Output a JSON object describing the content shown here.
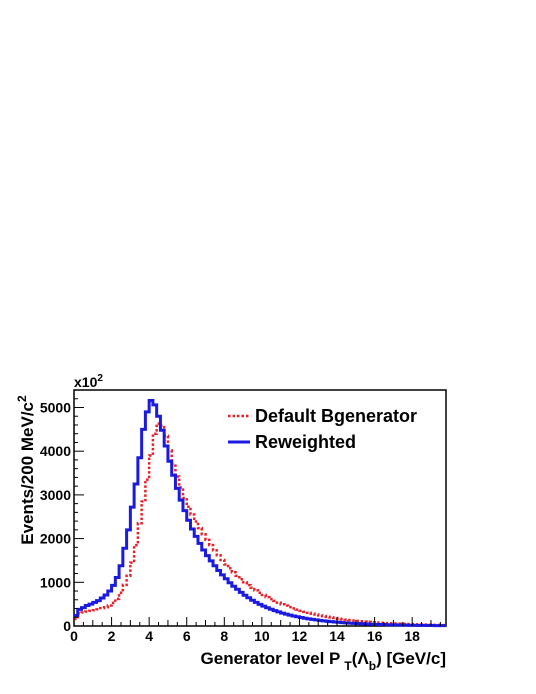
{
  "chart_data": {
    "type": "histogram",
    "title": "",
    "xlabel": {
      "main": "Generator level P",
      "sub": "T",
      "paren_open": "(",
      "symbol": "Λ",
      "symbol_sub": "b",
      "paren_close": ")",
      "units": " [GeV/c]"
    },
    "ylabel": {
      "main": "Events/200 MeV/c",
      "sup": "2"
    },
    "y_multiplier": {
      "base": "x10",
      "exp": "2"
    },
    "xlim": [
      0,
      19.8
    ],
    "ylim": [
      0,
      5400
    ],
    "bin_width": 0.2,
    "grid": false,
    "x_ticks": [
      0,
      2,
      4,
      6,
      8,
      10,
      12,
      14,
      16,
      18
    ],
    "x_tick_labels": [
      "0",
      "2",
      "4",
      "6",
      "8",
      "10",
      "12",
      "14",
      "16",
      "18"
    ],
    "y_ticks": [
      0,
      1000,
      2000,
      3000,
      4000,
      5000
    ],
    "y_tick_labels": [
      "0",
      "1000",
      "2000",
      "3000",
      "4000",
      "5000"
    ],
    "legend": {
      "position": "top-right"
    },
    "series": [
      {
        "name": "Default Bgenerator",
        "color": "#e8202a",
        "style": "dotted",
        "values": [
          160,
          290,
          310,
          330,
          345,
          360,
          380,
          410,
          430,
          470,
          530,
          620,
          760,
          940,
          1150,
          1450,
          1850,
          2350,
          2850,
          3350,
          3900,
          4400,
          4630,
          4580,
          4350,
          4020,
          3700,
          3420,
          3170,
          2930,
          2730,
          2550,
          2390,
          2240,
          2100,
          1970,
          1850,
          1730,
          1620,
          1510,
          1410,
          1320,
          1230,
          1150,
          1070,
          1000,
          935,
          875,
          815,
          760,
          710,
          660,
          615,
          575,
          535,
          498,
          465,
          433,
          403,
          375,
          350,
          325,
          303,
          282,
          262,
          244,
          227,
          211,
          196,
          182,
          169,
          157,
          146,
          136,
          126,
          117,
          109,
          101,
          94,
          87,
          81,
          75,
          70,
          65,
          60,
          56,
          52,
          48,
          45,
          42,
          39,
          36,
          34,
          31,
          29,
          27,
          25,
          23,
          21
        ]
      },
      {
        "name": "Reweighted",
        "color": "#1a1ae0",
        "style": "solid",
        "values": [
          240,
          380,
          420,
          470,
          500,
          540,
          580,
          640,
          710,
          800,
          930,
          1110,
          1380,
          1780,
          2200,
          2720,
          3250,
          3850,
          4500,
          4900,
          5160,
          5060,
          4800,
          4480,
          4120,
          3770,
          3450,
          3150,
          2880,
          2640,
          2420,
          2220,
          2050,
          1890,
          1740,
          1610,
          1490,
          1380,
          1270,
          1170,
          1080,
          990,
          910,
          840,
          770,
          705,
          645,
          590,
          540,
          495,
          455,
          418,
          383,
          352,
          323,
          296,
          272,
          250,
          230,
          211,
          194,
          178,
          164,
          151,
          139,
          128,
          118,
          109,
          100,
          92,
          85,
          78,
          72,
          66,
          61,
          56,
          52,
          48,
          44,
          40,
          37,
          34,
          31,
          29,
          27,
          25,
          23,
          21,
          19,
          18,
          16,
          15,
          14,
          13,
          12,
          11,
          10,
          9,
          8
        ]
      }
    ]
  }
}
